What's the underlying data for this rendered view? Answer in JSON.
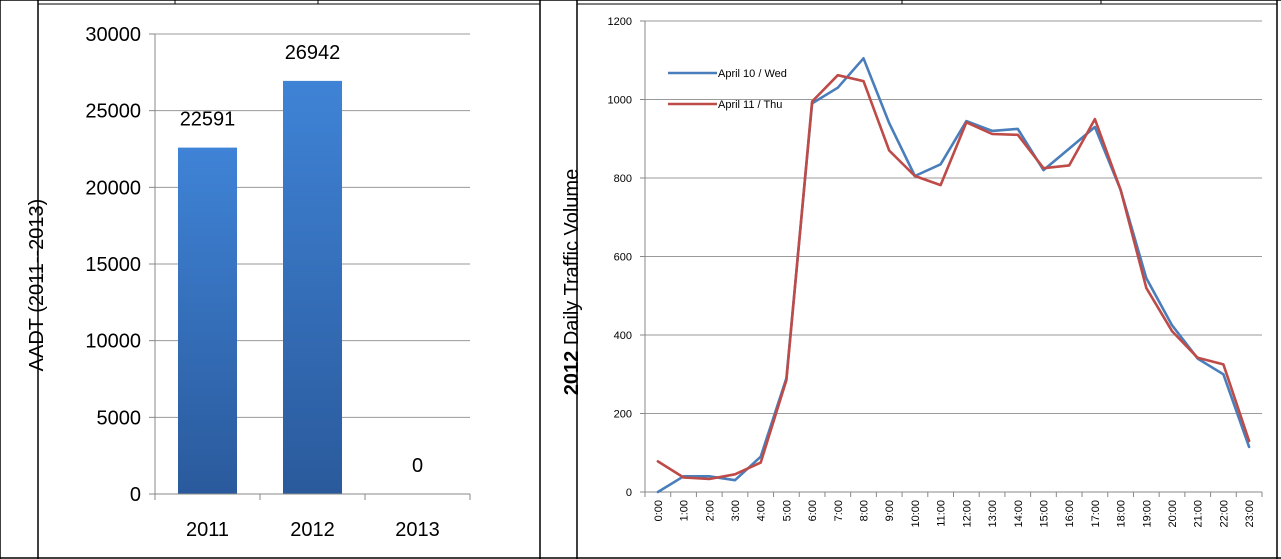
{
  "chart_data": [
    {
      "type": "bar",
      "ylabel": "AADT (2011--2013)",
      "categories": [
        "2011",
        "2012",
        "2013"
      ],
      "values": [
        22591,
        26942,
        0
      ],
      "data_labels": [
        "22591",
        "26942",
        "0"
      ],
      "yticks": [
        "0",
        "5000",
        "10000",
        "15000",
        "20000",
        "25000",
        "30000"
      ],
      "ylim": [
        0,
        30000
      ],
      "grid": true,
      "bar_color": "#3a78c8"
    },
    {
      "type": "line",
      "ylabel_bold": "2012",
      "ylabel_rest": " Daily Traffic Volume",
      "x": [
        "0:00",
        "1:00",
        "2:00",
        "3:00",
        "4:00",
        "5:00",
        "6:00",
        "7:00",
        "8:00",
        "9:00",
        "10:00",
        "11:00",
        "12:00",
        "13:00",
        "14:00",
        "15:00",
        "16:00",
        "17:00",
        "18:00",
        "19:00",
        "20:00",
        "21:00",
        "22:00",
        "23:00"
      ],
      "yticks": [
        "0",
        "200",
        "400",
        "600",
        "800",
        "1000",
        "1200"
      ],
      "ylim": [
        0,
        1200
      ],
      "grid": true,
      "legend_position": "top-left",
      "series": [
        {
          "name": "April 10 / Wed",
          "color": "#4a7ebb",
          "values": [
            0,
            40,
            40,
            30,
            90,
            290,
            990,
            1030,
            1105,
            940,
            805,
            835,
            945,
            920,
            925,
            820,
            875,
            930,
            770,
            545,
            425,
            340,
            300,
            115
          ]
        },
        {
          "name": "April 11 / Thu",
          "color": "#be4b48",
          "values": [
            78,
            37,
            33,
            45,
            75,
            285,
            995,
            1062,
            1047,
            870,
            805,
            782,
            942,
            912,
            910,
            825,
            832,
            950,
            770,
            520,
            410,
            342,
            325,
            130
          ]
        }
      ]
    }
  ]
}
